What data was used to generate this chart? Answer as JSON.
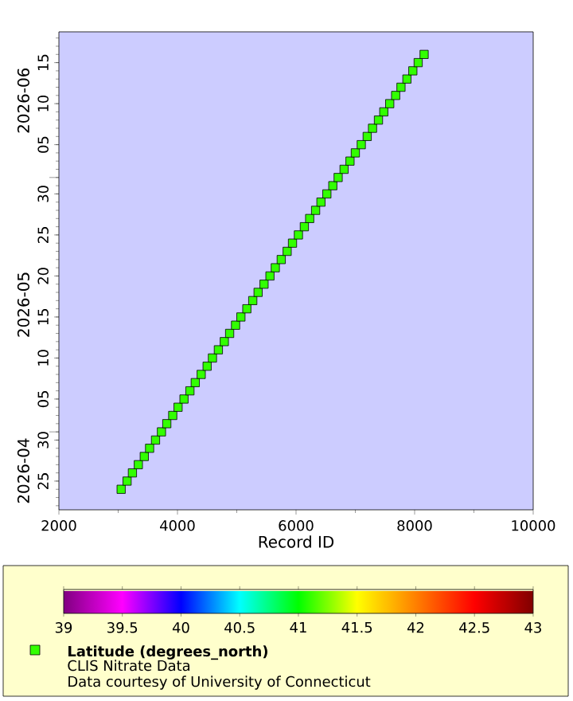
{
  "chart_data": {
    "type": "scatter",
    "orientation": "horizontal",
    "xlabel": "Record ID",
    "clabel": "Latitude (degrees_north)",
    "marker": "square",
    "annotations": [
      "CLIS Nitrate Data",
      "Data courtesy of University of Connecticut"
    ],
    "values": [
      3050,
      3150,
      3240,
      3340,
      3440,
      3530,
      3630,
      3730,
      3820,
      3920,
      4010,
      4110,
      4210,
      4300,
      4400,
      4500,
      4590,
      4690,
      4790,
      4880,
      4980,
      5070,
      5170,
      5270,
      5360,
      5460,
      5560,
      5650,
      5750,
      5850,
      5940,
      6040,
      6140,
      6230,
      6330,
      6420,
      6520,
      6620,
      6710,
      6810,
      6910,
      7000,
      7100,
      7200,
      7290,
      7390,
      7480,
      7580,
      7680,
      7770,
      7870,
      7970,
      8060,
      8160
    ],
    "x": [
      "2026-04-24",
      "2026-04-25",
      "2026-04-26",
      "2026-04-27",
      "2026-04-28",
      "2026-04-29",
      "2026-04-30",
      "2026-05-01",
      "2026-05-02",
      "2026-05-03",
      "2026-05-04",
      "2026-05-05",
      "2026-05-06",
      "2026-05-07",
      "2026-05-08",
      "2026-05-09",
      "2026-05-10",
      "2026-05-11",
      "2026-05-12",
      "2026-05-13",
      "2026-05-14",
      "2026-05-15",
      "2026-05-16",
      "2026-05-17",
      "2026-05-18",
      "2026-05-19",
      "2026-05-20",
      "2026-05-21",
      "2026-05-22",
      "2026-05-23",
      "2026-05-24",
      "2026-05-25",
      "2026-05-26",
      "2026-05-27",
      "2026-05-28",
      "2026-05-29",
      "2026-05-30",
      "2026-05-31",
      "2026-06-01",
      "2026-06-02",
      "2026-06-03",
      "2026-06-04",
      "2026-06-05",
      "2026-06-06",
      "2026-06-07",
      "2026-06-08",
      "2026-06-09",
      "2026-06-10",
      "2026-06-11",
      "2026-06-12",
      "2026-06-13",
      "2026-06-14",
      "2026-06-15",
      "2026-06-16"
    ],
    "cvalues": [
      41.1,
      41.1,
      41.1,
      41.1,
      41.1,
      41.1,
      41.1,
      41.1,
      41.1,
      41.1,
      41.1,
      41.1,
      41.1,
      41.1,
      41.1,
      41.1,
      41.1,
      41.1,
      41.1,
      41.1,
      41.1,
      41.1,
      41.1,
      41.1,
      41.1,
      41.1,
      41.1,
      41.1,
      41.1,
      41.1,
      41.1,
      41.1,
      41.1,
      41.1,
      41.1,
      41.1,
      41.1,
      41.1,
      41.1,
      41.1,
      41.1,
      41.1,
      41.1,
      41.1,
      41.1,
      41.1,
      41.1,
      41.1,
      41.1,
      41.1,
      41.1,
      41.1,
      41.1,
      41.1
    ],
    "clim": [
      39,
      43
    ],
    "cticks": [
      39,
      39.5,
      40,
      40.5,
      41,
      41.5,
      42,
      42.5,
      43
    ],
    "xlim": [
      2000,
      10000
    ],
    "xticks": [
      2000,
      4000,
      6000,
      8000,
      10000
    ],
    "ylim": [
      "2026-04-21T12:00",
      "2026-06-18T18:00"
    ],
    "yticks": [
      {
        "value": "2026-04-25",
        "label": "25"
      },
      {
        "value": "2026-04-30",
        "label": "30"
      },
      {
        "value": "2026-05-01",
        "label": null
      },
      {
        "value": "2026-05-05",
        "label": "05"
      },
      {
        "value": "2026-05-10",
        "label": "10"
      },
      {
        "value": "2026-05-15",
        "label": "15"
      },
      {
        "value": "2026-05-20",
        "label": "20"
      },
      {
        "value": "2026-05-25",
        "label": "25"
      },
      {
        "value": "2026-05-30",
        "label": "30"
      },
      {
        "value": "2026-06-01",
        "label": null
      },
      {
        "value": "2026-06-05",
        "label": "05"
      },
      {
        "value": "2026-06-10",
        "label": "10"
      },
      {
        "value": "2026-06-15",
        "label": "15"
      }
    ],
    "y2lim": [
      "2026-04-21T12:00",
      "2026-06-18T18:00"
    ],
    "y2ticks": [
      {
        "value": "2026-04-26T06:00",
        "label": "2026-04"
      },
      {
        "value": "2026-05-16T12:00",
        "label": "2026-05"
      },
      {
        "value": "2026-06-10T09:00",
        "label": "2026-06"
      }
    ]
  }
}
